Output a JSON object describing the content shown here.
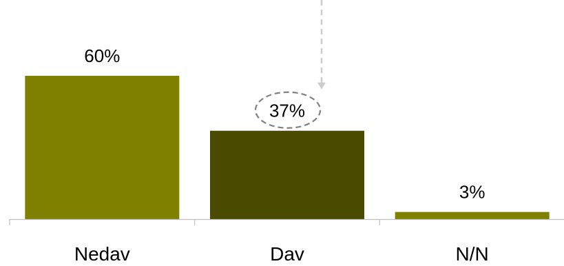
{
  "chart_data": {
    "type": "bar",
    "categories": [
      "Nedav",
      "Dav",
      "N/N"
    ],
    "values": [
      60,
      37,
      3
    ],
    "value_labels": [
      "60%",
      "37%",
      "3%"
    ],
    "ylim": [
      0,
      100
    ],
    "grid": false,
    "legend": "none",
    "bar_colors": [
      "#808000",
      "#4a4a00",
      "#808000"
    ],
    "axis_color": "#bfbfbf",
    "annotation": {
      "highlighted_category": "Dav",
      "style": "dashed ellipse with dashed arrow from top",
      "color": "#808080",
      "arrow_color": "#cccccc"
    }
  }
}
